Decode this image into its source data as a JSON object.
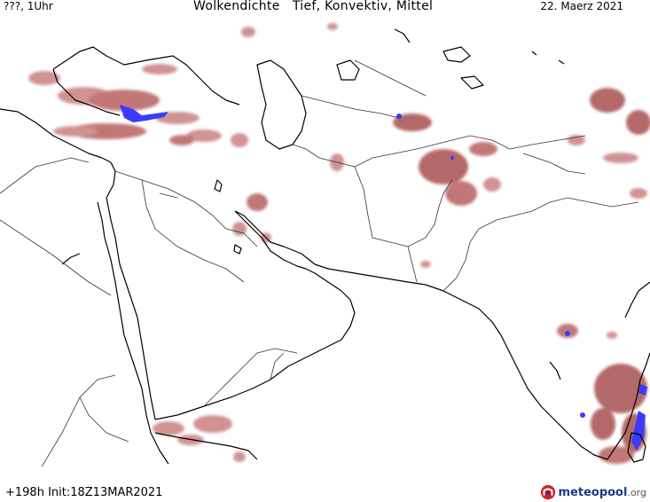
{
  "header": {
    "left_label": "???, 1Uhr",
    "title": "Wolkendichte   Tief, Konvektiv, Mittel",
    "date": "22. Maerz 2021"
  },
  "footer": {
    "forecast_info": "+198h  Init:18Z13MAR2021",
    "logo_brand": "meteopool",
    "logo_tld": ".org"
  },
  "colors": {
    "cloud_low": "#a85050",
    "cloud_mid": "#c98080",
    "cloud_dense": "#3b3bff",
    "coastline": "#000000",
    "border": "#333333"
  },
  "icons": {
    "logo": "meteopool-logo-icon"
  }
}
